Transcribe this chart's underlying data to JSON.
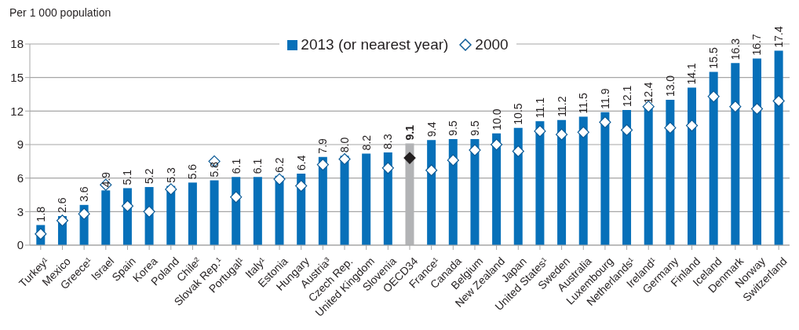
{
  "chart_data": {
    "type": "bar",
    "ylabel": "Per 1 000 population",
    "categories": [
      "Turkey¹",
      "Mexico",
      "Greece¹",
      "Israel",
      "Spain",
      "Korea",
      "Poland",
      "Chile²",
      "Slovak Rep.¹",
      "Portugal¹",
      "Italy¹",
      "Estonia",
      "Hungary",
      "Austria³",
      "Czech Rep.",
      "United Kingdom",
      "Slovenia",
      "OECD34",
      "France¹",
      "Canada",
      "Belgium",
      "New Zealand",
      "Japan",
      "United States¹",
      "Sweden",
      "Australia",
      "Luxembourg",
      "Netherlands¹",
      "Ireland¹",
      "Germany",
      "Finland",
      "Iceland",
      "Denmark",
      "Norway",
      "Switzerland"
    ],
    "series": [
      {
        "name": "2013 (or nearest year)",
        "color": "#0770b9",
        "values": [
          1.8,
          2.6,
          3.6,
          4.9,
          5.1,
          5.2,
          5.3,
          5.6,
          5.8,
          6.1,
          6.1,
          6.2,
          6.4,
          7.9,
          8.0,
          8.2,
          8.3,
          9.1,
          9.4,
          9.5,
          9.5,
          10.0,
          10.5,
          11.1,
          11.2,
          11.5,
          11.9,
          12.1,
          12.4,
          13.0,
          14.1,
          15.5,
          16.3,
          16.7,
          17.4
        ],
        "value_labels": [
          "1.8",
          "2.6",
          "3.6",
          "4.9",
          "5.1",
          "5.2",
          "5.3",
          "5.6",
          "5.8",
          "6.1",
          "6.1",
          "6.2",
          "6.4",
          "7.9",
          "8.0",
          "8.2",
          "8.3",
          "9.1",
          "9.4",
          "9.5",
          "9.5",
          "10.0",
          "10.5",
          "11.1",
          "11.2",
          "11.5",
          "11.9",
          "12.1",
          "12.4",
          "13.0",
          "14.1",
          "15.5",
          "16.3",
          "16.7",
          "17.4"
        ],
        "colors": [
          "#0770b9",
          "#0770b9",
          "#0770b9",
          "#0770b9",
          "#0770b9",
          "#0770b9",
          "#0770b9",
          "#0770b9",
          "#0770b9",
          "#0770b9",
          "#0770b9",
          "#0770b9",
          "#0770b9",
          "#0770b9",
          "#0770b9",
          "#0770b9",
          "#0770b9",
          "#b2b3b5",
          "#0770b9",
          "#0770b9",
          "#0770b9",
          "#0770b9",
          "#0770b9",
          "#0770b9",
          "#0770b9",
          "#0770b9",
          "#0770b9",
          "#0770b9",
          "#0770b9",
          "#0770b9",
          "#0770b9",
          "#0770b9",
          "#0770b9",
          "#0770b9",
          "#0770b9"
        ]
      },
      {
        "name": "2000",
        "type": "scatter",
        "marker": "diamond",
        "color": "#0b5a96",
        "values": [
          1.0,
          2.2,
          2.8,
          5.4,
          3.5,
          3.0,
          5.0,
          null,
          7.5,
          4.3,
          null,
          5.9,
          5.3,
          7.2,
          7.7,
          null,
          6.9,
          7.8,
          6.7,
          7.6,
          8.5,
          9.0,
          8.4,
          10.2,
          9.9,
          10.1,
          11.0,
          10.3,
          12.4,
          10.5,
          10.7,
          13.3,
          12.4,
          12.2,
          12.9
        ],
        "colors": [
          "#ffffff",
          "#ffffff",
          "#ffffff",
          "#ffffff",
          "#ffffff",
          "#ffffff",
          "#ffffff",
          null,
          "#ffffff",
          "#ffffff",
          null,
          "#ffffff",
          "#ffffff",
          "#ffffff",
          "#ffffff",
          null,
          "#ffffff",
          "#231f20",
          "#ffffff",
          "#ffffff",
          "#ffffff",
          "#ffffff",
          "#ffffff",
          "#ffffff",
          "#ffffff",
          "#ffffff",
          "#ffffff",
          "#ffffff",
          "#ffffff",
          "#ffffff",
          "#ffffff",
          "#ffffff",
          "#ffffff",
          "#ffffff",
          "#ffffff"
        ]
      }
    ],
    "ylim": [
      0,
      18
    ],
    "yticks": [
      0,
      3,
      6,
      9,
      12,
      15,
      18
    ],
    "grid": "y",
    "legend": "top"
  }
}
